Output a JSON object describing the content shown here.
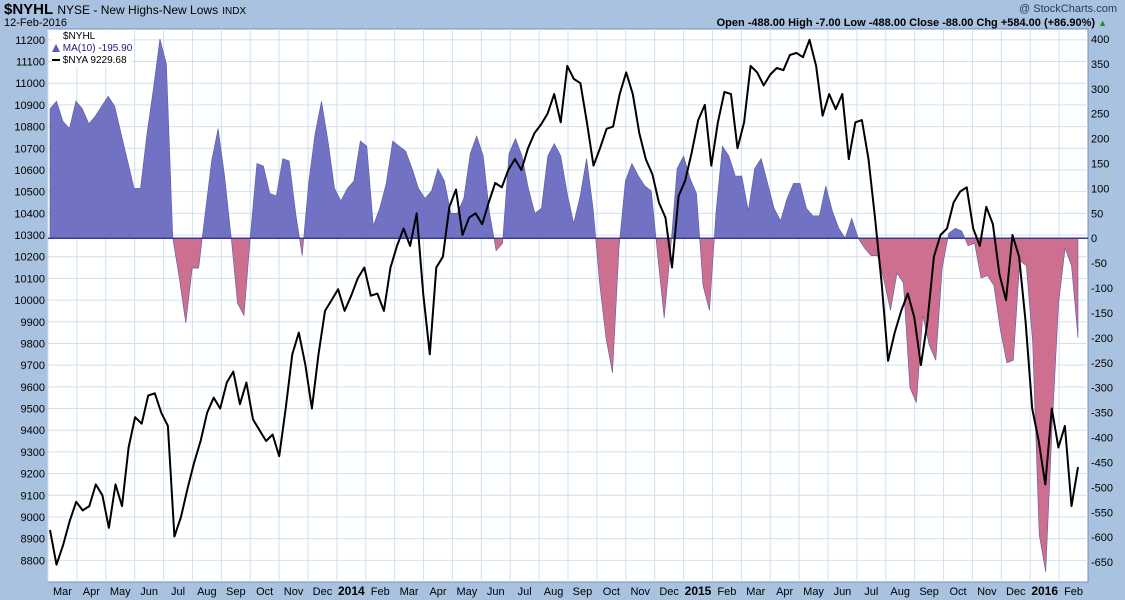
{
  "header": {
    "symbol": "$NYHL",
    "description": "NYSE - New Highs-New Lows",
    "exchange": "INDX",
    "date": "12-Feb-2016",
    "watermark": "@ StockCharts.com",
    "quote_line": "Open -488.00   High -7.00   Low -488.00   Close -88.00   Chg +584.00 (+86.90%)",
    "up_arrow": "▲"
  },
  "legend": {
    "symbol": "$NYHL",
    "ma": "MA(10) -195.90",
    "nya": "$NYA 9229.68"
  },
  "colors": {
    "background": "#a9c2df",
    "plot_bg": "#ffffff",
    "grid": "#cfe0f0",
    "positive_fill": "#7272c4",
    "negative_fill": "#cd7090",
    "zero_line": "#3a3a99",
    "nya_line": "#000000"
  },
  "chart_data": {
    "type": "area",
    "x_labels": [
      "Mar",
      "Apr",
      "May",
      "Jun",
      "Jul",
      "Aug",
      "Sep",
      "Oct",
      "Nov",
      "Dec",
      "2014",
      "Feb",
      "Mar",
      "Apr",
      "May",
      "Jun",
      "Jul",
      "Aug",
      "Sep",
      "Oct",
      "Nov",
      "Dec",
      "2015",
      "Feb",
      "Mar",
      "Apr",
      "May",
      "Jun",
      "Jul",
      "Aug",
      "Sep",
      "Oct",
      "Nov",
      "Dec",
      "2016",
      "Feb"
    ],
    "bold_x_labels": [
      "2014",
      "2015",
      "2016"
    ],
    "left_axis": {
      "ticks": [
        8800,
        8900,
        9000,
        9100,
        9200,
        9300,
        9400,
        9500,
        9600,
        9700,
        9800,
        9900,
        10000,
        10100,
        10200,
        10300,
        10400,
        10500,
        10600,
        10700,
        10800,
        10900,
        11000,
        11100,
        11200
      ],
      "range": [
        8700,
        11250
      ]
    },
    "right_axis": {
      "ticks": [
        400,
        350,
        300,
        250,
        200,
        150,
        100,
        50,
        0,
        -50,
        -100,
        -150,
        -200,
        -250,
        -300,
        -350,
        -400,
        -450,
        -500,
        -550,
        -600,
        -650
      ],
      "range": [
        -690,
        420
      ]
    },
    "series": [
      {
        "name": "MA(10)",
        "axis": "right",
        "style": "area",
        "values": [
          260,
          275,
          235,
          220,
          275,
          260,
          230,
          245,
          265,
          285,
          265,
          210,
          155,
          100,
          100,
          210,
          300,
          400,
          350,
          0,
          -80,
          -170,
          -60,
          -60,
          50,
          155,
          220,
          125,
          5,
          -130,
          -155,
          5,
          150,
          145,
          90,
          85,
          160,
          155,
          50,
          -35,
          110,
          210,
          275,
          195,
          100,
          75,
          100,
          115,
          195,
          185,
          25,
          60,
          110,
          195,
          185,
          175,
          140,
          100,
          80,
          95,
          140,
          115,
          50,
          50,
          80,
          170,
          205,
          165,
          50,
          -25,
          -10,
          170,
          200,
          165,
          100,
          50,
          60,
          165,
          190,
          165,
          90,
          30,
          85,
          160,
          60,
          -90,
          -200,
          -270,
          -20,
          115,
          150,
          125,
          105,
          95,
          -35,
          -160,
          -20,
          140,
          165,
          120,
          90,
          -95,
          -145,
          50,
          185,
          165,
          125,
          125,
          55,
          140,
          160,
          110,
          60,
          35,
          80,
          110,
          110,
          60,
          45,
          45,
          105,
          55,
          20,
          0,
          40,
          0,
          -20,
          -35,
          -35,
          -85,
          -145,
          -70,
          -90,
          -300,
          -330,
          -155,
          -215,
          -245,
          -60,
          10,
          20,
          15,
          -15,
          -10,
          -80,
          -75,
          -95,
          -185,
          -250,
          -245,
          -45,
          -55,
          -210,
          -595,
          -670,
          -380,
          -130,
          -20,
          -55,
          -200
        ]
      },
      {
        "name": "$NYA",
        "axis": "left",
        "style": "line",
        "values": [
          8940,
          8780,
          8870,
          8980,
          9070,
          9030,
          9050,
          9150,
          9100,
          8950,
          9150,
          9050,
          9320,
          9460,
          9430,
          9560,
          9570,
          9480,
          9420,
          8910,
          9000,
          9130,
          9250,
          9350,
          9480,
          9550,
          9500,
          9620,
          9670,
          9520,
          9620,
          9450,
          9400,
          9350,
          9380,
          9280,
          9500,
          9750,
          9850,
          9700,
          9500,
          9750,
          9950,
          10000,
          10050,
          9950,
          10020,
          10100,
          10150,
          10020,
          10030,
          9950,
          10150,
          10250,
          10330,
          10250,
          10400,
          10030,
          9750,
          10150,
          10200,
          10430,
          10510,
          10300,
          10380,
          10400,
          10350,
          10450,
          10540,
          10520,
          10600,
          10650,
          10600,
          10700,
          10770,
          10810,
          10860,
          10950,
          10820,
          11080,
          11020,
          11000,
          10820,
          10620,
          10700,
          10790,
          10800,
          10950,
          11050,
          10950,
          10770,
          10650,
          10580,
          10450,
          10380,
          10150,
          10480,
          10550,
          10680,
          10830,
          10900,
          10620,
          10820,
          10960,
          10950,
          10700,
          10820,
          11080,
          11050,
          10990,
          11040,
          11070,
          11060,
          11130,
          11140,
          11120,
          11200,
          11080,
          10850,
          10950,
          10880,
          10950,
          10650,
          10820,
          10830,
          10650,
          10380,
          10080,
          9720,
          9850,
          9950,
          10030,
          9920,
          9700,
          9900,
          10200,
          10300,
          10330,
          10450,
          10500,
          10520,
          10330,
          10250,
          10430,
          10350,
          10120,
          10000,
          10300,
          10200,
          9900,
          9500,
          9350,
          9150,
          9500,
          9320,
          9420,
          9050,
          9230
        ]
      }
    ]
  }
}
